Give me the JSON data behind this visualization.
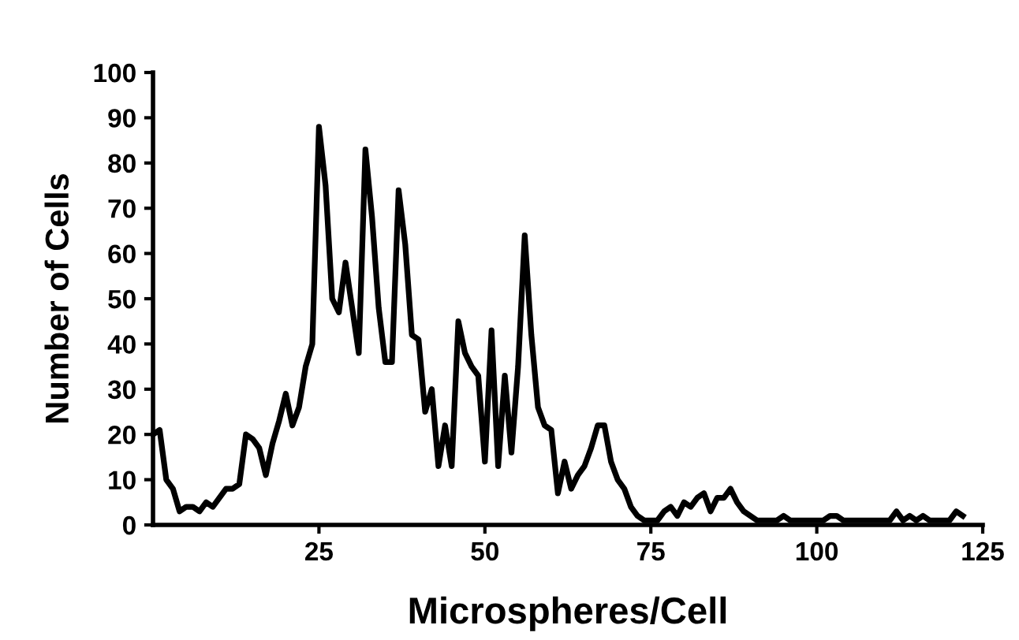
{
  "chart_data": {
    "type": "line",
    "xlabel": "Microspheres/Cell",
    "ylabel": "Number of Cells",
    "x": [
      0,
      1,
      2,
      3,
      4,
      5,
      6,
      7,
      8,
      9,
      10,
      11,
      12,
      13,
      14,
      15,
      16,
      17,
      18,
      19,
      20,
      21,
      22,
      23,
      24,
      25,
      26,
      27,
      28,
      29,
      30,
      31,
      32,
      33,
      34,
      35,
      36,
      37,
      38,
      39,
      40,
      41,
      42,
      43,
      44,
      45,
      46,
      47,
      48,
      49,
      50,
      51,
      52,
      53,
      54,
      55,
      56,
      57,
      58,
      59,
      60,
      61,
      62,
      63,
      64,
      65,
      66,
      67,
      68,
      69,
      70,
      71,
      72,
      73,
      74,
      75,
      76,
      77,
      78,
      79,
      80,
      81,
      82,
      83,
      84,
      85,
      86,
      87,
      88,
      89,
      90,
      91,
      92,
      93,
      94,
      95,
      96,
      97,
      98,
      99,
      100,
      101,
      102,
      103,
      104,
      105,
      106,
      107,
      108,
      109,
      110,
      111,
      112,
      113,
      114,
      115,
      116,
      117,
      118,
      119,
      120,
      121,
      122
    ],
    "series": [
      {
        "color": "#000000",
        "values": [
          20,
          21,
          10,
          8,
          3,
          4,
          4,
          3,
          5,
          4,
          6,
          8,
          8,
          9,
          20,
          19,
          17,
          11,
          18,
          23,
          29,
          22,
          26,
          35,
          40,
          88,
          75,
          50,
          47,
          58,
          48,
          38,
          83,
          68,
          48,
          36,
          36,
          74,
          62,
          42,
          41,
          25,
          30,
          13,
          22,
          13,
          45,
          38,
          35,
          33,
          14,
          43,
          13,
          33,
          16,
          35,
          64,
          42,
          26,
          22,
          21,
          7,
          14,
          8,
          11,
          13,
          17,
          22,
          22,
          14,
          10,
          8,
          4,
          2,
          1,
          1,
          1,
          3,
          4,
          2,
          5,
          4,
          6,
          7,
          3,
          6,
          6,
          8,
          5,
          3,
          2,
          1,
          1,
          1,
          1,
          2,
          1,
          1,
          1,
          1,
          1,
          1,
          2,
          2,
          1,
          1,
          1,
          1,
          1,
          1,
          1,
          1,
          3,
          1,
          2,
          1,
          2,
          1,
          1,
          1,
          1,
          3,
          2
        ]
      }
    ],
    "xlim": [
      0,
      125
    ],
    "ylim": [
      0,
      100
    ],
    "xticks": [
      25,
      50,
      75,
      100,
      125
    ],
    "yticks": [
      0,
      10,
      20,
      30,
      40,
      50,
      60,
      70,
      80,
      90,
      100
    ],
    "grid": false,
    "marker": "none",
    "line_style": "solid"
  }
}
